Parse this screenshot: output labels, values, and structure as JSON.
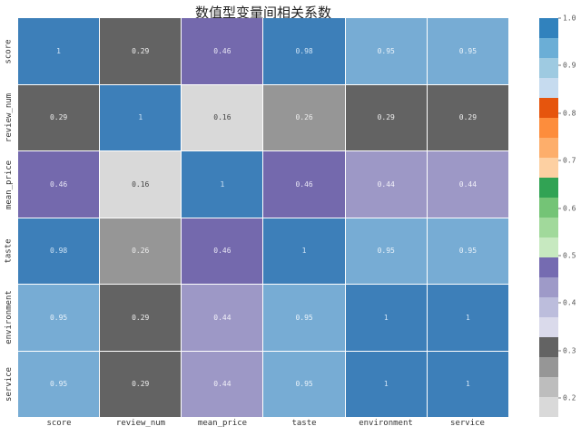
{
  "chart_data": {
    "type": "heatmap",
    "title": "数值型变量间相关系数",
    "xlabel": "",
    "ylabel": "",
    "x_labels": [
      "score",
      "review_num",
      "mean_price",
      "taste",
      "environment",
      "service"
    ],
    "y_labels": [
      "score",
      "review_num",
      "mean_price",
      "taste",
      "environment",
      "service"
    ],
    "values": [
      [
        1,
        0.29,
        0.46,
        0.98,
        0.95,
        0.95
      ],
      [
        0.29,
        1,
        0.16,
        0.26,
        0.29,
        0.29
      ],
      [
        0.46,
        0.16,
        1,
        0.46,
        0.44,
        0.44
      ],
      [
        0.98,
        0.26,
        0.46,
        1,
        0.95,
        0.95
      ],
      [
        0.95,
        0.29,
        0.44,
        0.95,
        1,
        1
      ],
      [
        0.95,
        0.29,
        0.44,
        0.95,
        1,
        1
      ]
    ],
    "annotations": [
      [
        "1",
        "0.29",
        "0.46",
        "0.98",
        "0.95",
        "0.95"
      ],
      [
        "0.29",
        "1",
        "0.16",
        "0.26",
        "0.29",
        "0.29"
      ],
      [
        "0.46",
        "0.16",
        "1",
        "0.46",
        "0.44",
        "0.44"
      ],
      [
        "0.98",
        "0.26",
        "0.46",
        "1",
        "0.95",
        "0.95"
      ],
      [
        "0.95",
        "0.29",
        "0.44",
        "0.95",
        "1",
        "1"
      ],
      [
        "0.95",
        "0.29",
        "0.44",
        "0.95",
        "1",
        "1"
      ]
    ],
    "colormap": "tab20c_r",
    "vmin": 0.16,
    "vmax": 1.0,
    "grid": false,
    "colorbar": {
      "position": "right",
      "ticks": [
        "1.0",
        "0.9",
        "0.8",
        "0.7",
        "0.6",
        "0.5",
        "0.4",
        "0.3",
        "0.2"
      ],
      "tick_values": [
        1.0,
        0.9,
        0.8,
        0.7,
        0.6,
        0.5,
        0.4,
        0.3,
        0.2
      ],
      "segments_top_to_bottom": [
        "#3182bd",
        "#6baed6",
        "#9ecae1",
        "#c6dbef",
        "#e6550d",
        "#fd8d3c",
        "#fdae6b",
        "#fdd0a2",
        "#31a354",
        "#74c476",
        "#a1d99b",
        "#c7e9c0",
        "#756bb1",
        "#9e9ac8",
        "#bcbddc",
        "#dadaeb",
        "#636363",
        "#969696",
        "#bdbdbd",
        "#d9d9d9"
      ]
    }
  },
  "cell_colors": [
    [
      "#3d7fb9",
      "#636363",
      "#7469ad",
      "#3d7fb9",
      "#77acd4",
      "#77acd4"
    ],
    [
      "#636363",
      "#3d7fb9",
      "#d9d9d9",
      "#969696",
      "#636363",
      "#636363"
    ],
    [
      "#7469ad",
      "#d9d9d9",
      "#3d7fb9",
      "#7469ad",
      "#9d98c6",
      "#9d98c6"
    ],
    [
      "#3d7fb9",
      "#969696",
      "#7469ad",
      "#3d7fb9",
      "#77acd4",
      "#77acd4"
    ],
    [
      "#77acd4",
      "#636363",
      "#9d98c6",
      "#77acd4",
      "#3d7fb9",
      "#3d7fb9"
    ],
    [
      "#77acd4",
      "#636363",
      "#9d98c6",
      "#77acd4",
      "#3d7fb9",
      "#3d7fb9"
    ]
  ],
  "text_colors": [
    [
      "#cfe3f5",
      "#eeeeee",
      "#e8e6f5",
      "#cfe3f5",
      "#e9f2fa",
      "#e9f2fa"
    ],
    [
      "#eeeeee",
      "#cfe3f5",
      "#444444",
      "#eeeeee",
      "#eeeeee",
      "#eeeeee"
    ],
    [
      "#e8e6f5",
      "#444444",
      "#cfe3f5",
      "#e8e6f5",
      "#f2f1f9",
      "#f2f1f9"
    ],
    [
      "#cfe3f5",
      "#eeeeee",
      "#e8e6f5",
      "#cfe3f5",
      "#e9f2fa",
      "#e9f2fa"
    ],
    [
      "#e9f2fa",
      "#eeeeee",
      "#f2f1f9",
      "#e9f2fa",
      "#cfe3f5",
      "#cfe3f5"
    ],
    [
      "#e9f2fa",
      "#eeeeee",
      "#f2f1f9",
      "#e9f2fa",
      "#cfe3f5",
      "#cfe3f5"
    ]
  ]
}
